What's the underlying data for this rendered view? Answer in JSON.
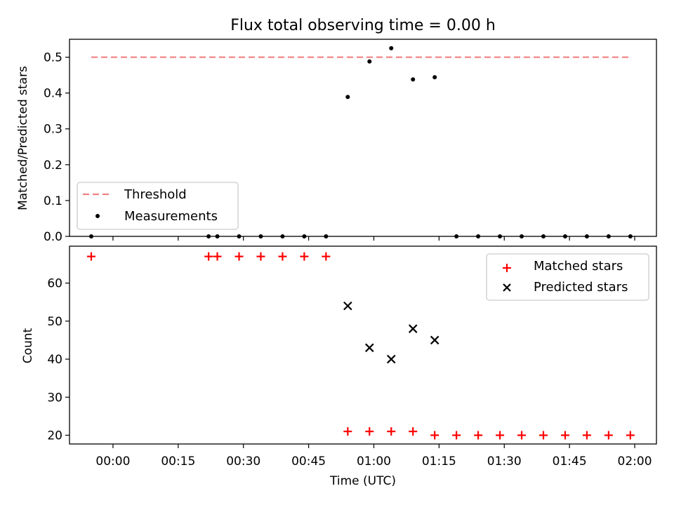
{
  "chart_data": [
    {
      "type": "scatter",
      "title": "Flux total observing time = 0.00 h",
      "ylabel": "Matched/Predicted stars",
      "xlabel": "",
      "ylim": [
        0,
        0.55
      ],
      "yticks": [
        "0.0",
        "0.1",
        "0.2",
        "0.3",
        "0.4",
        "0.5"
      ],
      "series": [
        {
          "name": "Threshold",
          "kind": "line",
          "style": "dashed",
          "color": "#f08080",
          "points": [
            {
              "x": "23:55",
              "y": 0.5
            },
            {
              "x": "01:59",
              "y": 0.5
            }
          ]
        },
        {
          "name": "Measurements",
          "kind": "scatter",
          "marker": "dot",
          "color": "#000000",
          "points": [
            {
              "x": "23:55",
              "y": 0.0
            },
            {
              "x": "00:22",
              "y": 0.0
            },
            {
              "x": "00:24",
              "y": 0.0
            },
            {
              "x": "00:29",
              "y": 0.0
            },
            {
              "x": "00:34",
              "y": 0.0
            },
            {
              "x": "00:39",
              "y": 0.0
            },
            {
              "x": "00:44",
              "y": 0.0
            },
            {
              "x": "00:49",
              "y": 0.0
            },
            {
              "x": "00:54",
              "y": 0.389
            },
            {
              "x": "00:59",
              "y": 0.488
            },
            {
              "x": "01:04",
              "y": 0.525
            },
            {
              "x": "01:09",
              "y": 0.438
            },
            {
              "x": "01:14",
              "y": 0.444
            },
            {
              "x": "01:19",
              "y": 0.0
            },
            {
              "x": "01:24",
              "y": 0.0
            },
            {
              "x": "01:29",
              "y": 0.0
            },
            {
              "x": "01:34",
              "y": 0.0
            },
            {
              "x": "01:39",
              "y": 0.0
            },
            {
              "x": "01:44",
              "y": 0.0
            },
            {
              "x": "01:49",
              "y": 0.0
            },
            {
              "x": "01:54",
              "y": 0.0
            },
            {
              "x": "01:59",
              "y": 0.0
            }
          ]
        }
      ],
      "legend": "lower-left"
    },
    {
      "type": "scatter",
      "title": "",
      "ylabel": "Count",
      "xlabel": "Time (UTC)",
      "ylim": [
        17.7,
        69.7
      ],
      "yticks": [
        "20",
        "30",
        "40",
        "50",
        "60"
      ],
      "xlim": [
        "23:50",
        "02:05"
      ],
      "xticks": [
        "00:00",
        "00:15",
        "00:30",
        "00:45",
        "01:00",
        "01:15",
        "01:30",
        "01:45",
        "02:00"
      ],
      "series": [
        {
          "name": "Matched stars",
          "kind": "scatter",
          "marker": "plus",
          "color": "#ff0000",
          "points": [
            {
              "x": "23:55",
              "y": 67
            },
            {
              "x": "00:22",
              "y": 67
            },
            {
              "x": "00:24",
              "y": 67
            },
            {
              "x": "00:29",
              "y": 67
            },
            {
              "x": "00:34",
              "y": 67
            },
            {
              "x": "00:39",
              "y": 67
            },
            {
              "x": "00:44",
              "y": 67
            },
            {
              "x": "00:49",
              "y": 67
            },
            {
              "x": "00:54",
              "y": 21
            },
            {
              "x": "00:59",
              "y": 21
            },
            {
              "x": "01:04",
              "y": 21
            },
            {
              "x": "01:09",
              "y": 21
            },
            {
              "x": "01:14",
              "y": 20
            },
            {
              "x": "01:19",
              "y": 20
            },
            {
              "x": "01:24",
              "y": 20
            },
            {
              "x": "01:29",
              "y": 20
            },
            {
              "x": "01:34",
              "y": 20
            },
            {
              "x": "01:39",
              "y": 20
            },
            {
              "x": "01:44",
              "y": 20
            },
            {
              "x": "01:49",
              "y": 20
            },
            {
              "x": "01:54",
              "y": 20
            },
            {
              "x": "01:59",
              "y": 20
            }
          ]
        },
        {
          "name": "Predicted stars",
          "kind": "scatter",
          "marker": "x",
          "color": "#000000",
          "points": [
            {
              "x": "00:54",
              "y": 54
            },
            {
              "x": "00:59",
              "y": 43
            },
            {
              "x": "01:04",
              "y": 40
            },
            {
              "x": "01:09",
              "y": 48
            },
            {
              "x": "01:14",
              "y": 45
            }
          ]
        }
      ],
      "legend": "upper-right"
    }
  ]
}
